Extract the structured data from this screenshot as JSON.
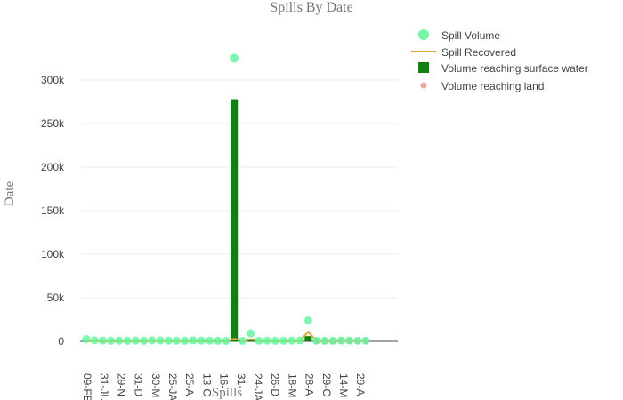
{
  "chart_data": {
    "type": "bar",
    "title": "Spills By Date",
    "xlabel": "Spills",
    "ylabel": "Date",
    "ylim": [
      -5000,
      345000
    ],
    "yticks": [
      0,
      50000,
      100000,
      150000,
      200000,
      250000,
      300000
    ],
    "ytick_labels": [
      "0",
      "50k",
      "100k",
      "150k",
      "200k",
      "250k",
      "300k"
    ],
    "grid": true,
    "legend_position": "top-right",
    "x_tick_labels": [
      "09-FE",
      "31-JU",
      "29-N",
      "31-D",
      "30-M",
      "25-JA",
      "25-A",
      "13-O",
      "16-",
      "31-",
      "24-JA",
      "26-D",
      "18-M",
      "28-A",
      "29-O",
      "14-M",
      "29-A"
    ],
    "n_points": 35,
    "series": [
      {
        "name": "Spill Volume",
        "kind": "scatter",
        "color": "#5cf59a",
        "values": [
          2500,
          1200,
          900,
          700,
          800,
          600,
          900,
          700,
          1200,
          1000,
          800,
          700,
          600,
          1100,
          900,
          800,
          600,
          500,
          325000,
          600,
          9000,
          700,
          800,
          600,
          700,
          900,
          1000,
          24000,
          800,
          700,
          600,
          900,
          1000,
          700,
          800
        ]
      },
      {
        "name": "Spill Recovered",
        "kind": "line",
        "color": "#e0a526",
        "values": [
          800,
          500,
          300,
          200,
          300,
          200,
          400,
          300,
          500,
          400,
          300,
          200,
          200,
          400,
          300,
          300,
          200,
          200,
          3000,
          200,
          2500,
          200,
          300,
          200,
          200,
          300,
          400,
          11000,
          300,
          200,
          200,
          300,
          400,
          200,
          300
        ]
      },
      {
        "name": "Volume reaching surface water",
        "kind": "bar",
        "color": "#118011",
        "values": [
          0,
          0,
          0,
          0,
          0,
          0,
          0,
          0,
          0,
          0,
          0,
          0,
          0,
          0,
          0,
          0,
          0,
          0,
          278000,
          0,
          3000,
          0,
          0,
          0,
          0,
          0,
          0,
          6000,
          0,
          0,
          0,
          0,
          0,
          0,
          0
        ]
      },
      {
        "name": "Volume reaching land",
        "kind": "scatter",
        "color": "#f4a3a0",
        "values": [
          0,
          0,
          0,
          0,
          0,
          0,
          0,
          0,
          0,
          0,
          0,
          0,
          0,
          0,
          0,
          0,
          0,
          0,
          0,
          0,
          0,
          0,
          0,
          0,
          0,
          0,
          0,
          0,
          200,
          300,
          200,
          300,
          400,
          300,
          300
        ]
      }
    ]
  }
}
